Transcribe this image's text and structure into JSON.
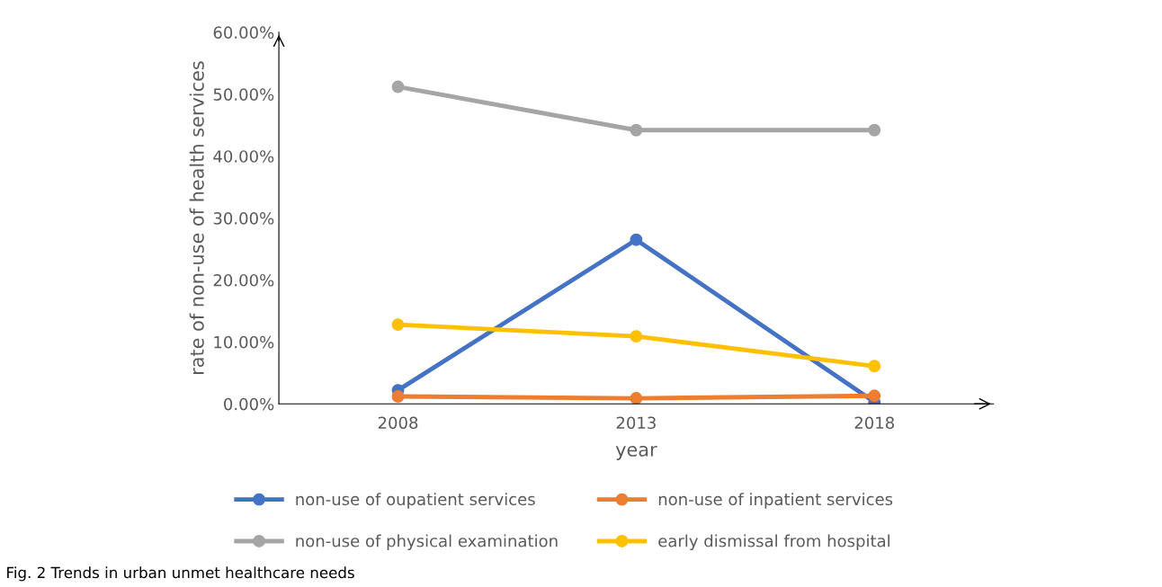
{
  "chart_data": {
    "type": "line",
    "xlabel": "year",
    "ylabel": "rate of non-use of health services",
    "categories": [
      "2008",
      "2013",
      "2018"
    ],
    "series": [
      {
        "name": "non-use of oupatient services",
        "color": "#4472c4",
        "values": [
          2.2,
          26.5,
          0.3
        ]
      },
      {
        "name": "non-use of inpatient services",
        "color": "#ed7d31",
        "values": [
          1.2,
          0.9,
          1.3
        ]
      },
      {
        "name": "non-use of physical examination",
        "color": "#a5a5a5",
        "values": [
          51.2,
          44.2,
          44.2
        ]
      },
      {
        "name": "early dismissal from hospital",
        "color": "#ffc000",
        "values": [
          12.8,
          10.9,
          6.1
        ]
      }
    ],
    "ylim": [
      0,
      60
    ],
    "yticks": [
      {
        "value": 0,
        "label": "0.00%"
      },
      {
        "value": 10,
        "label": "10.00%"
      },
      {
        "value": 20,
        "label": "20.00%"
      },
      {
        "value": 30,
        "label": "30.00%"
      },
      {
        "value": 40,
        "label": "40.00%"
      },
      {
        "value": 50,
        "label": "50.00%"
      },
      {
        "value": 60,
        "label": "60.00%"
      }
    ],
    "grid": false,
    "legend": "bottom",
    "marker": "circle",
    "line_style": "solid",
    "annotations": [
      "Fig. 2 Trends in urban unmet healthcare needs"
    ]
  }
}
